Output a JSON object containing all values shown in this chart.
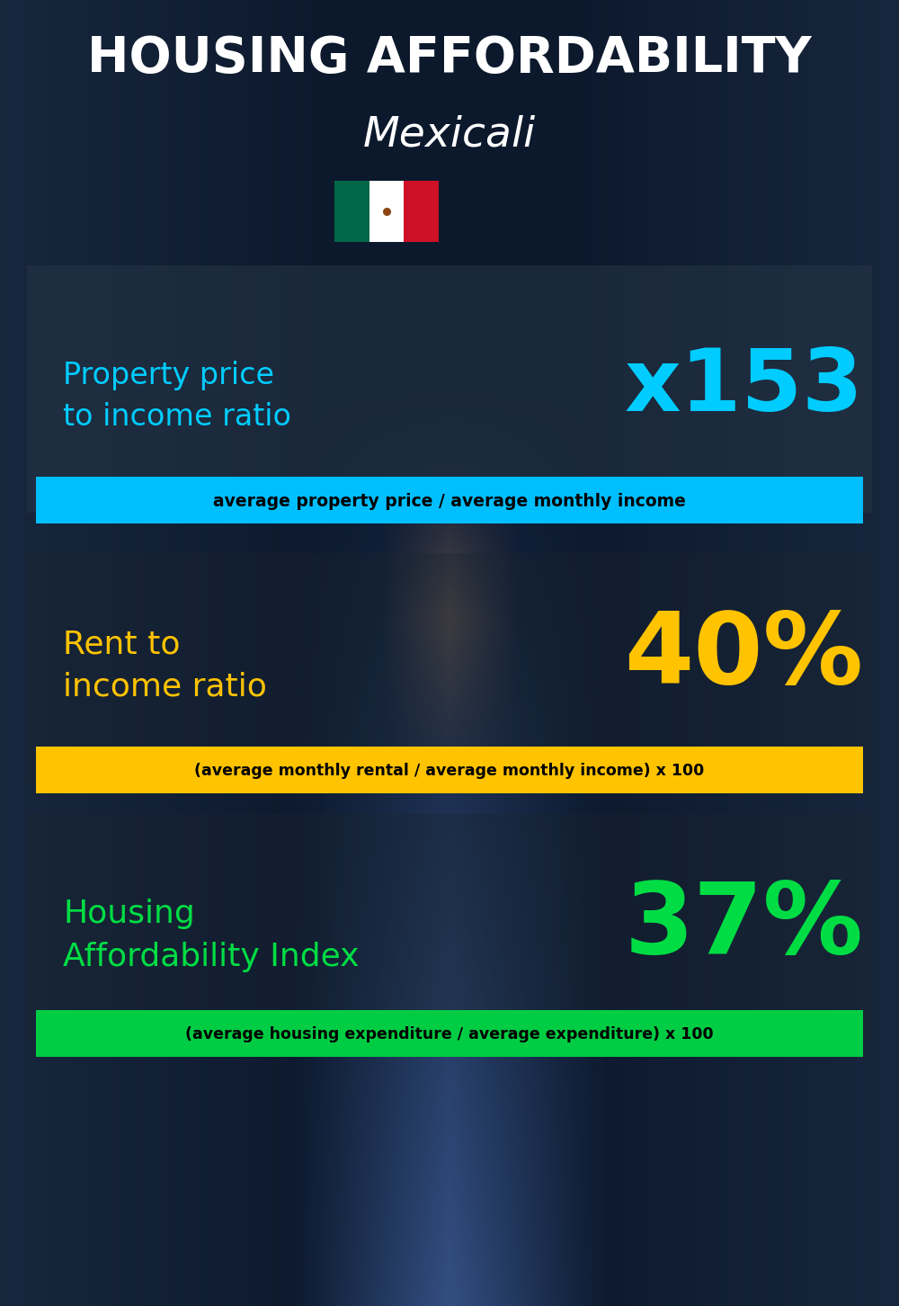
{
  "title_line1": "HOUSING AFFORDABILITY",
  "title_line2": "Mexicali",
  "bg_color": "#0a1520",
  "section1_label": "Property price\nto income ratio",
  "section1_value": "x153",
  "section1_label_color": "#00ccff",
  "section1_value_color": "#00ccff",
  "section1_formula": "average property price / average monthly income",
  "section1_formula_bg": "#00bfff",
  "section1_formula_color": "#000000",
  "section2_label": "Rent to\nincome ratio",
  "section2_value": "40%",
  "section2_label_color": "#ffc300",
  "section2_value_color": "#ffc300",
  "section2_formula": "(average monthly rental / average monthly income) x 100",
  "section2_formula_bg": "#ffc300",
  "section2_formula_color": "#000000",
  "section3_label": "Housing\nAffordability Index",
  "section3_value": "37%",
  "section3_label_color": "#00dd44",
  "section3_value_color": "#00dd44",
  "section3_formula": "(average housing expenditure / average expenditure) x 100",
  "section3_formula_bg": "#00cc44",
  "section3_formula_color": "#000000",
  "title_color": "#ffffff",
  "subtitle_color": "#ffffff",
  "flag_green": "#006847",
  "flag_white": "#ffffff",
  "flag_red": "#ce1126",
  "flag_emblem": "#8B4513"
}
